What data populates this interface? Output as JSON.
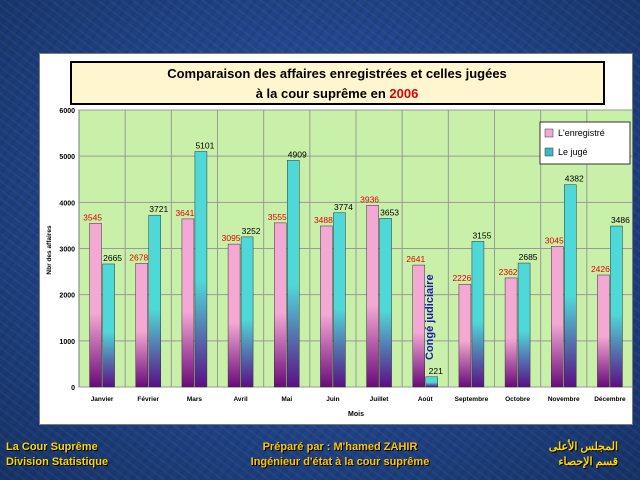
{
  "chart_data": {
    "type": "bar",
    "title_line1": "Comparaison des affaires enregistrées et celles jugées",
    "title_line2_prefix": "à la cour suprême en ",
    "title_year": "2006",
    "xlabel": "Mois",
    "ylabel": "Nbr des affaires",
    "ylim": [
      0,
      6000
    ],
    "yticks": [
      0,
      1000,
      2000,
      3000,
      4000,
      5000,
      6000
    ],
    "grid": true,
    "legend_position": "top-right",
    "categories": [
      "Janvier",
      "Février",
      "Mars",
      "Avril",
      "Mai",
      "Juin",
      "Juillet",
      "Août",
      "Septembre",
      "Octobre",
      "Novembre",
      "Décembre"
    ],
    "series": [
      {
        "name": "L'enregistré",
        "values": [
          3545,
          2678,
          3641,
          3095,
          3555,
          3488,
          3936,
          2641,
          2226,
          2362,
          3045,
          2426
        ],
        "color_top": "#f4a8d4",
        "color_bottom": "#6a0a7a",
        "label_color": "#e00000"
      },
      {
        "name": "Le jugé",
        "values": [
          2665,
          3721,
          5101,
          3252,
          4909,
          3774,
          3653,
          221,
          3155,
          2685,
          4382,
          3486
        ],
        "color_top": "#4fd8d8",
        "color_bottom": "#5a0f86",
        "label_color": "#000000"
      }
    ],
    "annotation": "Congé judiciaire",
    "annotation_color": "#1a1ab4",
    "plot_bg": "#c8f0a8",
    "title_bg": "#fff6d0"
  },
  "footer": {
    "left_line1": "La Cour Suprême",
    "left_line2": "Division Statistique",
    "center_line1": "Préparé par : M'hamed ZAHIR",
    "center_line2": "Ingénieur d'état à la cour suprême",
    "right_line1": "المجلس الأعلى",
    "right_line2": "قسم الإحصاء"
  }
}
